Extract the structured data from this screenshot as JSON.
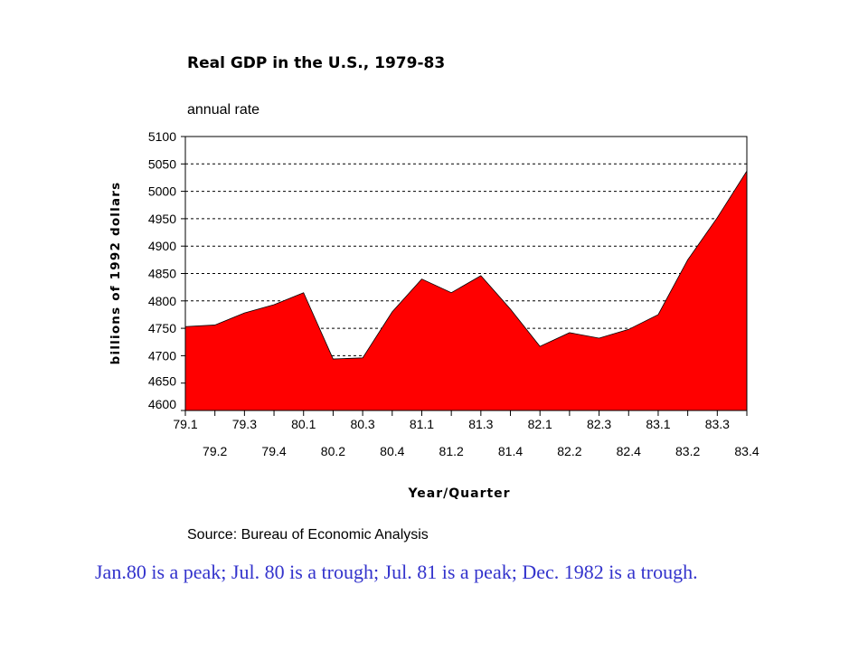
{
  "chart_data": {
    "type": "area",
    "title": "Real GDP in the U.S., 1979-83",
    "subtitle": "annual rate",
    "xlabel": "Year/Quarter",
    "ylabel": "billions of 1992 dollars",
    "source": "Source: Bureau of Economic Analysis",
    "categories": [
      "79.1",
      "79.2",
      "79.3",
      "79.4",
      "80.1",
      "80.2",
      "80.3",
      "80.4",
      "81.1",
      "81.2",
      "81.3",
      "81.4",
      "82.1",
      "82.2",
      "82.3",
      "82.4",
      "83.1",
      "83.2",
      "83.3",
      "83.4"
    ],
    "series": [
      {
        "values": [
          4753,
          4756,
          4778,
          4793,
          4815,
          4694,
          4696,
          4780,
          4840,
          4815,
          4846,
          4785,
          4717,
          4742,
          4732,
          4748,
          4775,
          4875,
          4952,
          5037
        ]
      }
    ],
    "ylim": [
      4600,
      5100
    ],
    "yticks": [
      4600,
      4650,
      4700,
      4750,
      4800,
      4850,
      4900,
      4950,
      5000,
      5050,
      5100
    ],
    "grid": true,
    "fill_color": "#ff0000"
  },
  "caption": "Jan.80 is a peak; Jul. 80 is a trough; Jul. 81 is a peak; Dec. 1982 is a trough."
}
